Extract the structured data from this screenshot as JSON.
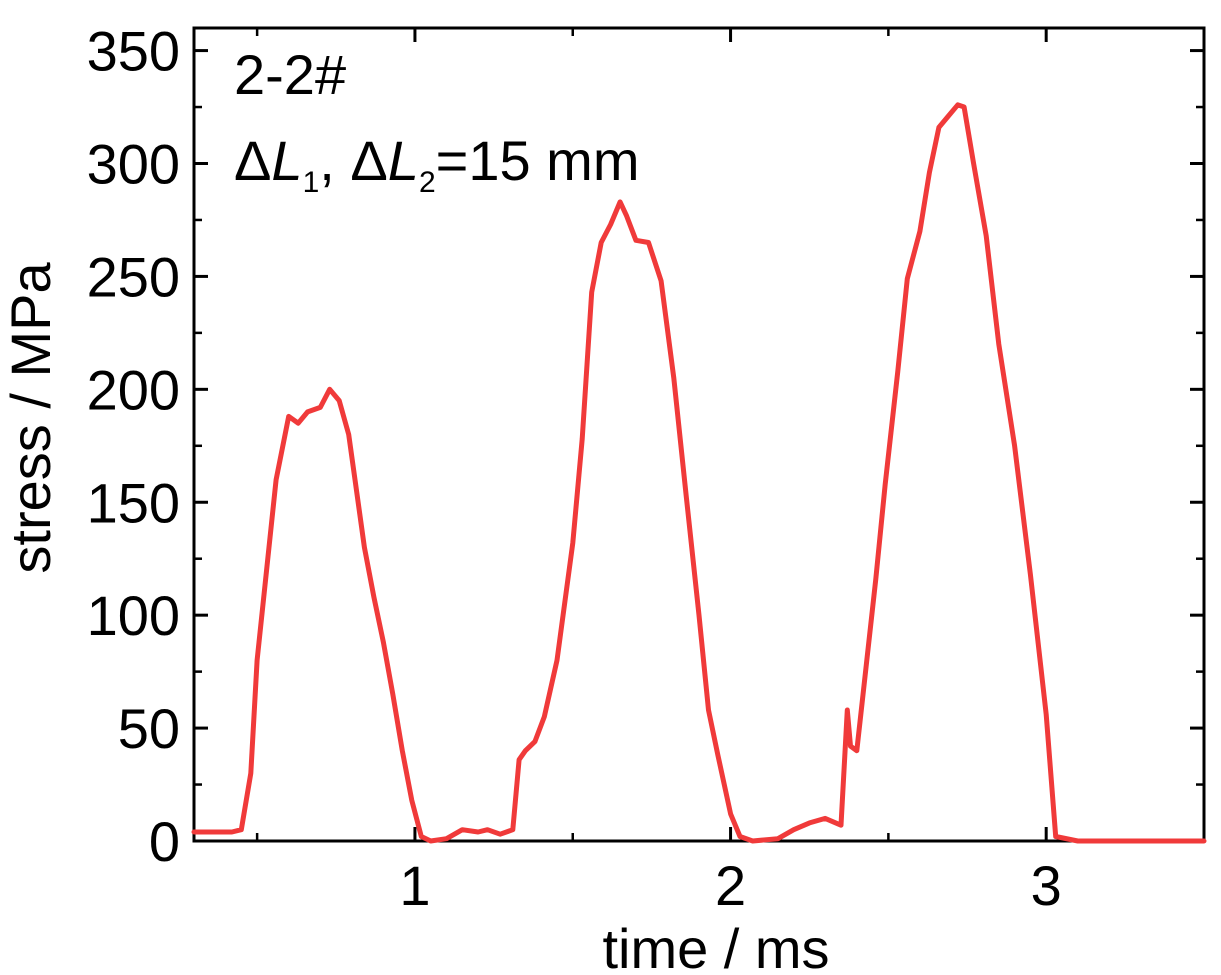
{
  "chart_data": {
    "type": "line",
    "title": "",
    "xlabel": "time / ms",
    "ylabel": "stress / MPa",
    "xlim": [
      0.3,
      3.5
    ],
    "ylim": [
      0,
      360
    ],
    "x_ticks": [
      1,
      2,
      3
    ],
    "y_ticks": [
      0,
      50,
      100,
      150,
      200,
      250,
      300,
      350
    ],
    "grid": false,
    "legend": "none",
    "annotations": {
      "sample_id": "2-2#",
      "delta_symbol": "Δ",
      "l_symbol": "L",
      "sub1": "1",
      "sub2": "2",
      "sep": ", ",
      "value": "=15 mm"
    },
    "series": [
      {
        "color": "#f03a3a",
        "x": [
          0.3,
          0.42,
          0.45,
          0.48,
          0.5,
          0.53,
          0.56,
          0.6,
          0.63,
          0.66,
          0.7,
          0.73,
          0.76,
          0.79,
          0.81,
          0.84,
          0.87,
          0.9,
          0.93,
          0.96,
          0.99,
          1.02,
          1.05,
          1.1,
          1.15,
          1.2,
          1.23,
          1.27,
          1.31,
          1.33,
          1.35,
          1.38,
          1.41,
          1.45,
          1.5,
          1.53,
          1.56,
          1.59,
          1.62,
          1.65,
          1.67,
          1.7,
          1.74,
          1.78,
          1.82,
          1.86,
          1.9,
          1.93,
          1.96,
          2.0,
          2.03,
          2.07,
          2.15,
          2.2,
          2.25,
          2.3,
          2.35,
          2.37,
          2.38,
          2.4,
          2.43,
          2.46,
          2.49,
          2.53,
          2.56,
          2.6,
          2.63,
          2.66,
          2.69,
          2.72,
          2.74,
          2.77,
          2.81,
          2.85,
          2.9,
          2.95,
          3.0,
          3.03,
          3.1,
          3.2,
          3.3,
          3.4,
          3.5
        ],
        "y": [
          4,
          4,
          5,
          30,
          80,
          120,
          160,
          188,
          185,
          190,
          192,
          200,
          195,
          180,
          160,
          130,
          108,
          88,
          65,
          40,
          18,
          2,
          0,
          1,
          5,
          4,
          5,
          3,
          5,
          36,
          40,
          44,
          55,
          80,
          132,
          178,
          243,
          265,
          273,
          283,
          277,
          266,
          265,
          248,
          205,
          152,
          100,
          58,
          38,
          12,
          2,
          0,
          1,
          5,
          8,
          10,
          7,
          58,
          42,
          40,
          78,
          116,
          158,
          208,
          249,
          270,
          296,
          316,
          321,
          326,
          325,
          300,
          268,
          220,
          175,
          118,
          56,
          2,
          0,
          0,
          0,
          0,
          0
        ]
      }
    ]
  }
}
